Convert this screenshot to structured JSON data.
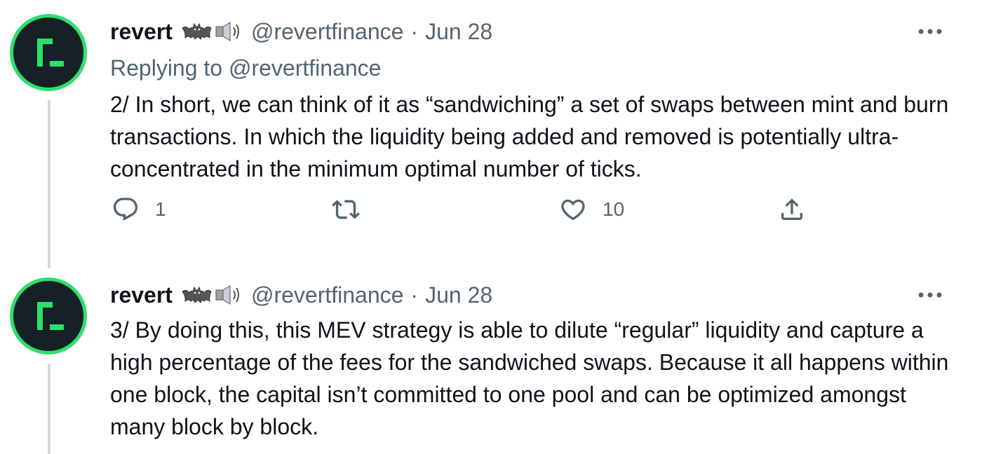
{
  "tweets": [
    {
      "author_name": "revert",
      "emoji": "bat-speaker-icons",
      "handle": "@revertfinance",
      "separator": "·",
      "date": "Jun 28",
      "replying_prefix": "Replying to",
      "replying_handle": "@revertfinance",
      "text": "2/ In short, we can think of it as “sandwiching” a set of swaps between mint and burn transactions. In which the liquidity being added and removed is potentially ultra-concentrated in the minimum optimal number of ticks.",
      "actions": {
        "reply_count": "1",
        "retweet_count": "",
        "like_count": "10"
      }
    },
    {
      "author_name": "revert",
      "emoji": "bat-speaker-icons",
      "handle": "@revertfinance",
      "separator": "·",
      "date": "Jun 28",
      "text": "3/ By doing this, this MEV strategy is able to dilute “regular” liquidity and capture a high percentage of the fees for the sandwiched swaps. Because it all happens within one block, the capital isn’t committed to one pool and can be optimized amongst many block by block."
    }
  ],
  "colors": {
    "avatar_ring": "#2ee06b",
    "avatar_bg": "#162027",
    "text_primary": "#0f1419",
    "text_secondary": "#536471",
    "thread_line": "#cfd9de"
  },
  "icons": [
    "more-icon",
    "reply-icon",
    "retweet-icon",
    "like-icon",
    "share-icon",
    "bat-icon",
    "speaker-icon"
  ]
}
